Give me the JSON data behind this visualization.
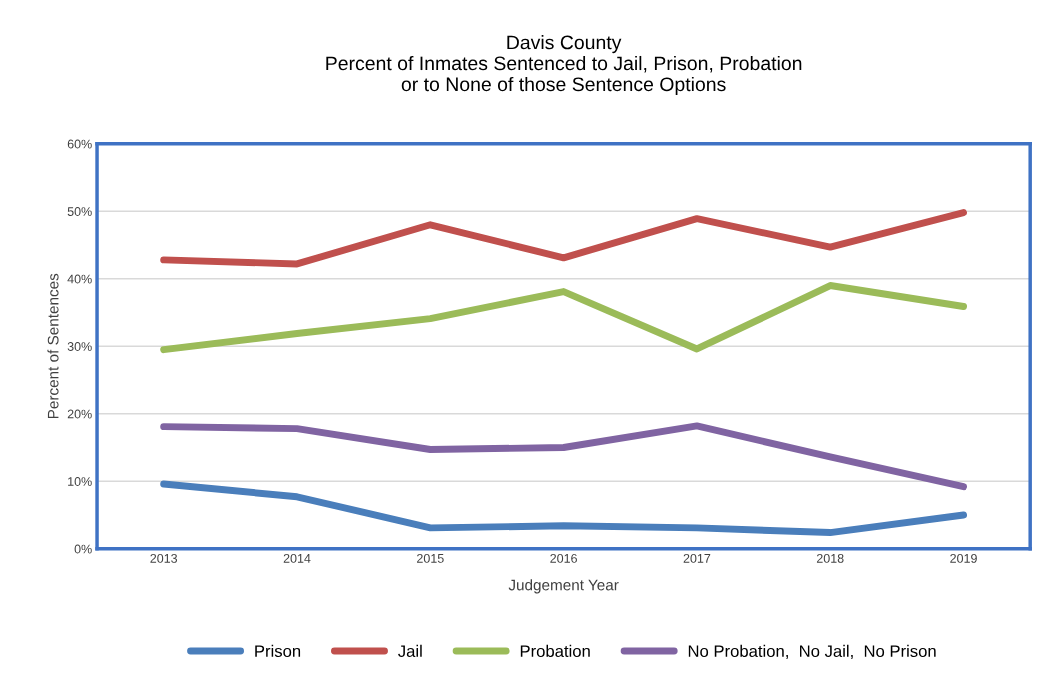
{
  "chart_data": {
    "type": "line",
    "title": "Davis County\nPercent of Inmates Sentenced to Jail, Prison, Probation\nor to None of those Sentence Options",
    "xlabel": "Judgement Year",
    "ylabel": "Percent of Sentences",
    "categories": [
      "2013",
      "2014",
      "2015",
      "2016",
      "2017",
      "2018",
      "2019"
    ],
    "series": [
      {
        "name": "Prison",
        "color": "#4a7ebb",
        "values": [
          9.6,
          7.7,
          3.1,
          3.4,
          3.1,
          2.4,
          5.0
        ]
      },
      {
        "name": "Jail",
        "color": "#c0504d",
        "values": [
          42.8,
          42.2,
          48.0,
          43.1,
          48.9,
          44.7,
          49.8
        ]
      },
      {
        "name": "Probation",
        "color": "#9bbb59",
        "values": [
          29.5,
          31.9,
          34.1,
          38.1,
          29.6,
          39.0,
          35.9
        ]
      },
      {
        "name": "No Probation,  No Jail,  No Prison",
        "color": "#8064a2",
        "values": [
          18.1,
          17.8,
          14.7,
          15.0,
          18.2,
          13.6,
          9.2
        ]
      }
    ],
    "ylim": [
      0,
      60
    ],
    "yticks": [
      {
        "value": 0,
        "label": "0%"
      },
      {
        "value": 10,
        "label": "10%"
      },
      {
        "value": 20,
        "label": "20%"
      },
      {
        "value": 30,
        "label": "30%"
      },
      {
        "value": 40,
        "label": "40%"
      },
      {
        "value": 50,
        "label": "50%"
      },
      {
        "value": 60,
        "label": "60%"
      }
    ],
    "grid": "y",
    "legend": "bottom",
    "marker": "none",
    "line_style": "solid"
  }
}
